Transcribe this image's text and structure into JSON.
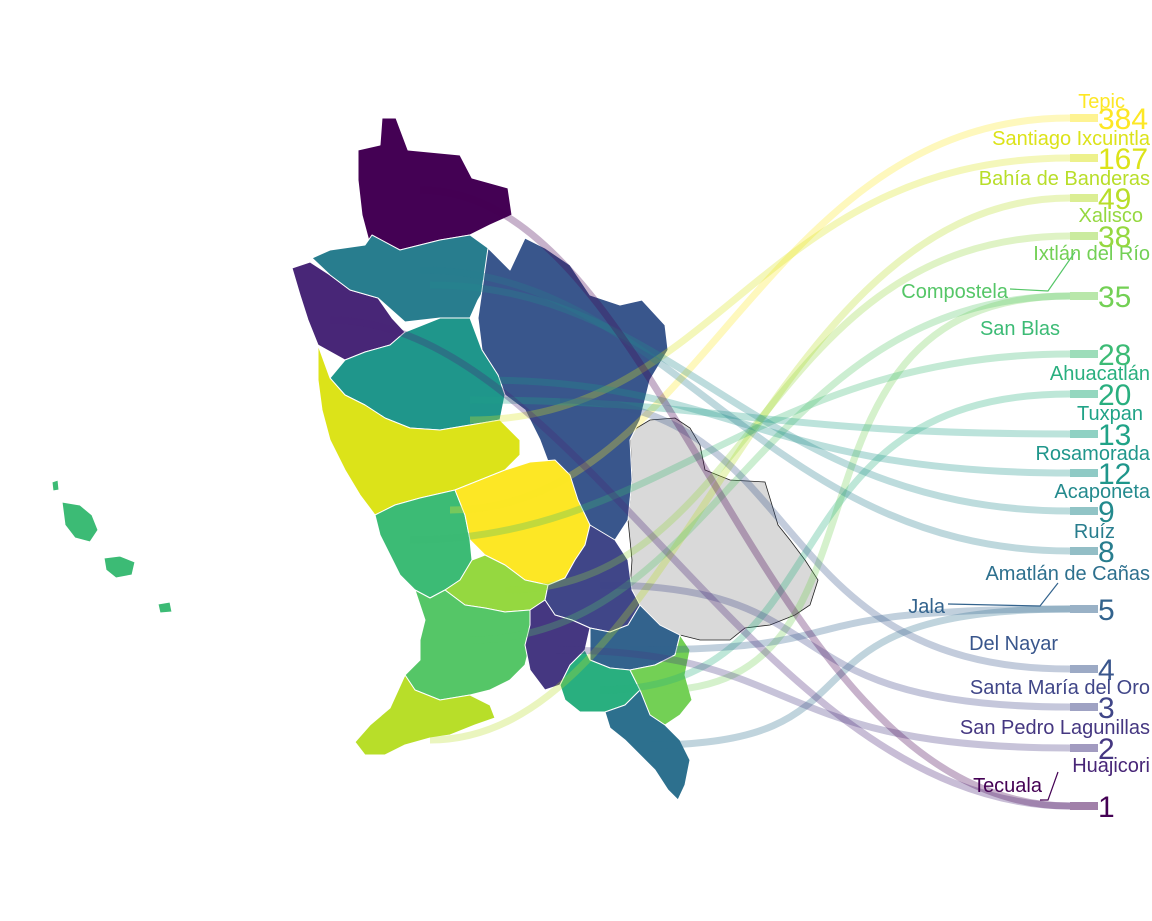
{
  "map": {
    "no_data_color": "#d9d9d9",
    "municipalities": [
      {
        "name": "Tepic",
        "value": 384,
        "color": "#FDE725"
      },
      {
        "name": "Santiago Ixcuintla",
        "value": 167,
        "color": "#DCE319"
      },
      {
        "name": "Bahía de Banderas",
        "value": 49,
        "color": "#B8DE29"
      },
      {
        "name": "Xalisco",
        "value": 38,
        "color": "#95D840"
      },
      {
        "name": "Ixtlán del Río",
        "value": 35,
        "color": "#73D055"
      },
      {
        "name": "Compostela",
        "value": 35,
        "color": "#55C667"
      },
      {
        "name": "San Blas",
        "value": 28,
        "color": "#3CBB75"
      },
      {
        "name": "Ahuacatlán",
        "value": 20,
        "color": "#29AF7F"
      },
      {
        "name": "Tuxpan",
        "value": 13,
        "color": "#20A387"
      },
      {
        "name": "Rosamorada",
        "value": 12,
        "color": "#1F968B"
      },
      {
        "name": "Acaponeta",
        "value": 9,
        "color": "#238A8D"
      },
      {
        "name": "Ruíz",
        "value": 8,
        "color": "#287D8E"
      },
      {
        "name": "Amatlán de Cañas",
        "value": 5,
        "color": "#2D708E"
      },
      {
        "name": "Jala",
        "value": 5,
        "color": "#33638D"
      },
      {
        "name": "Del Nayar",
        "value": 4,
        "color": "#39568C"
      },
      {
        "name": "Santa María del Oro",
        "value": 3,
        "color": "#404688"
      },
      {
        "name": "San Pedro Lagunillas",
        "value": 2,
        "color": "#453781"
      },
      {
        "name": "Huajicori",
        "value": 1,
        "color": "#482677"
      },
      {
        "name": "Tecuala",
        "value": 1,
        "color": "#440154"
      }
    ]
  },
  "legend": {
    "values": [
      "384",
      "167",
      "49",
      "38",
      "35",
      "28",
      "20",
      "13",
      "12",
      "9",
      "8",
      "5",
      "4",
      "3",
      "2",
      "1"
    ]
  }
}
